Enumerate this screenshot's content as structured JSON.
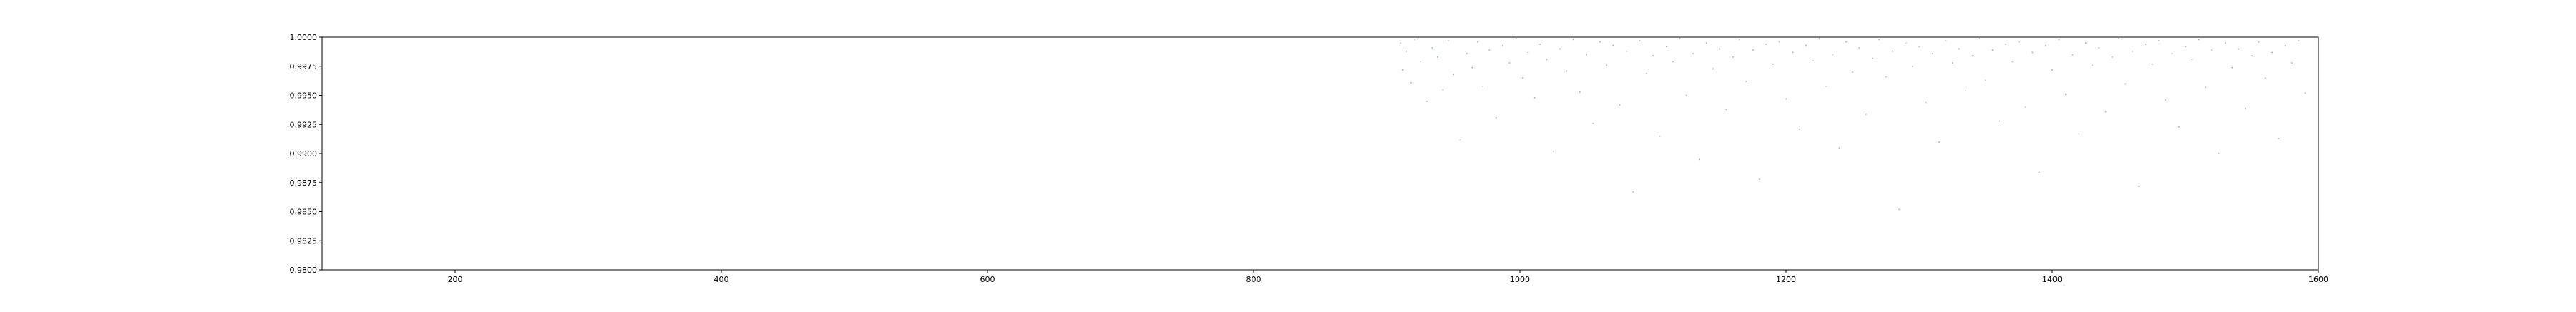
{
  "chart_data": {
    "type": "scatter",
    "title": "",
    "xlabel": "",
    "ylabel": "",
    "xlim": [
      100,
      1600
    ],
    "ylim": [
      0.98,
      1.0
    ],
    "x_ticks": [
      200,
      400,
      600,
      800,
      1000,
      1200,
      1400,
      1600
    ],
    "x_tick_labels": [
      "200",
      "400",
      "600",
      "800",
      "1000",
      "1200",
      "1400",
      "1600"
    ],
    "y_ticks": [
      0.98,
      0.9825,
      0.985,
      0.9875,
      0.99,
      0.9925,
      0.995,
      0.9975,
      1.0
    ],
    "y_tick_labels": [
      "0.9800",
      "0.9825",
      "0.9850",
      "0.9875",
      "0.9900",
      "0.9925",
      "0.9950",
      "0.9975",
      "1.0000"
    ],
    "grid": false,
    "legend": "none",
    "point_color": "#1f77b4",
    "point_alpha": 0.55,
    "series": [
      {
        "x_range": [
          905,
          1590
        ],
        "y_range": [
          0.98,
          1.0
        ],
        "density": "dense near 1.0000, sparse toward 0.9800",
        "points": [
          [
            910,
            0.9995
          ],
          [
            912,
            0.9972
          ],
          [
            915,
            0.9988
          ],
          [
            918,
            0.9961
          ],
          [
            921,
            0.9998
          ],
          [
            925,
            0.9979
          ],
          [
            930,
            0.9945
          ],
          [
            934,
            0.9991
          ],
          [
            938,
            0.9983
          ],
          [
            942,
            0.9955
          ],
          [
            946,
            0.9997
          ],
          [
            950,
            0.9968
          ],
          [
            955,
            0.9912
          ],
          [
            960,
            0.9986
          ],
          [
            964,
            0.9974
          ],
          [
            968,
            0.9996
          ],
          [
            972,
            0.9958
          ],
          [
            977,
            0.9989
          ],
          [
            982,
            0.9931
          ],
          [
            987,
            0.9993
          ],
          [
            992,
            0.9978
          ],
          [
            997,
            0.9999
          ],
          [
            1002,
            0.9965
          ],
          [
            1006,
            0.9987
          ],
          [
            1011,
            0.9948
          ],
          [
            1015,
            0.9994
          ],
          [
            1020,
            0.9981
          ],
          [
            1025,
            0.9902
          ],
          [
            1030,
            0.999
          ],
          [
            1035,
            0.9971
          ],
          [
            1040,
            0.9998
          ],
          [
            1045,
            0.9953
          ],
          [
            1050,
            0.9985
          ],
          [
            1055,
            0.9926
          ],
          [
            1060,
            0.9996
          ],
          [
            1065,
            0.9976
          ],
          [
            1070,
            0.9993
          ],
          [
            1075,
            0.9942
          ],
          [
            1080,
            0.9988
          ],
          [
            1085,
            0.9867
          ],
          [
            1090,
            0.9997
          ],
          [
            1095,
            0.9969
          ],
          [
            1100,
            0.9984
          ],
          [
            1105,
            0.9915
          ],
          [
            1110,
            0.9992
          ],
          [
            1115,
            0.9979
          ],
          [
            1120,
            0.9999
          ],
          [
            1125,
            0.995
          ],
          [
            1130,
            0.9986
          ],
          [
            1135,
            0.9895
          ],
          [
            1140,
            0.9995
          ],
          [
            1145,
            0.9973
          ],
          [
            1150,
            0.999
          ],
          [
            1155,
            0.9938
          ],
          [
            1160,
            0.9983
          ],
          [
            1165,
            0.9998
          ],
          [
            1170,
            0.9962
          ],
          [
            1175,
            0.9989
          ],
          [
            1180,
            0.9878
          ],
          [
            1185,
            0.9994
          ],
          [
            1190,
            0.9977
          ],
          [
            1195,
            0.9996
          ],
          [
            1200,
            0.9947
          ],
          [
            1205,
            0.9987
          ],
          [
            1210,
            0.9921
          ],
          [
            1215,
            0.9993
          ],
          [
            1220,
            0.998
          ],
          [
            1225,
            0.9999
          ],
          [
            1230,
            0.9958
          ],
          [
            1235,
            0.9985
          ],
          [
            1240,
            0.9905
          ],
          [
            1245,
            0.9996
          ],
          [
            1250,
            0.997
          ],
          [
            1255,
            0.9991
          ],
          [
            1260,
            0.9934
          ],
          [
            1265,
            0.9982
          ],
          [
            1270,
            0.9998
          ],
          [
            1275,
            0.9966
          ],
          [
            1280,
            0.9988
          ],
          [
            1285,
            0.9852
          ],
          [
            1290,
            0.9995
          ],
          [
            1295,
            0.9975
          ],
          [
            1300,
            0.9992
          ],
          [
            1305,
            0.9944
          ],
          [
            1310,
            0.9986
          ],
          [
            1315,
            0.991
          ],
          [
            1320,
            0.9997
          ],
          [
            1325,
            0.9978
          ],
          [
            1330,
            0.999
          ],
          [
            1335,
            0.9954
          ],
          [
            1340,
            0.9984
          ],
          [
            1345,
            0.9999
          ],
          [
            1350,
            0.9963
          ],
          [
            1355,
            0.9989
          ],
          [
            1360,
            0.9928
          ],
          [
            1365,
            0.9994
          ],
          [
            1370,
            0.9979
          ],
          [
            1375,
            0.9996
          ],
          [
            1380,
            0.994
          ],
          [
            1385,
            0.9987
          ],
          [
            1390,
            0.9884
          ],
          [
            1395,
            0.9993
          ],
          [
            1400,
            0.9972
          ],
          [
            1405,
            0.9998
          ],
          [
            1410,
            0.9951
          ],
          [
            1415,
            0.9985
          ],
          [
            1420,
            0.9917
          ],
          [
            1425,
            0.9995
          ],
          [
            1430,
            0.9976
          ],
          [
            1435,
            0.9991
          ],
          [
            1440,
            0.9936
          ],
          [
            1445,
            0.9983
          ],
          [
            1450,
            0.9999
          ],
          [
            1455,
            0.996
          ],
          [
            1460,
            0.9988
          ],
          [
            1465,
            0.9872
          ],
          [
            1470,
            0.9994
          ],
          [
            1475,
            0.9977
          ],
          [
            1480,
            0.9997
          ],
          [
            1485,
            0.9946
          ],
          [
            1490,
            0.9986
          ],
          [
            1495,
            0.9923
          ],
          [
            1500,
            0.9992
          ],
          [
            1505,
            0.9981
          ],
          [
            1510,
            0.9998
          ],
          [
            1515,
            0.9957
          ],
          [
            1520,
            0.9989
          ],
          [
            1525,
            0.99
          ],
          [
            1530,
            0.9995
          ],
          [
            1535,
            0.9974
          ],
          [
            1540,
            0.999
          ],
          [
            1545,
            0.9939
          ],
          [
            1550,
            0.9984
          ],
          [
            1555,
            0.9996
          ],
          [
            1560,
            0.9965
          ],
          [
            1565,
            0.9987
          ],
          [
            1570,
            0.9913
          ],
          [
            1575,
            0.9993
          ],
          [
            1580,
            0.9978
          ],
          [
            1585,
            0.9997
          ],
          [
            1590,
            0.9952
          ]
        ]
      }
    ]
  }
}
